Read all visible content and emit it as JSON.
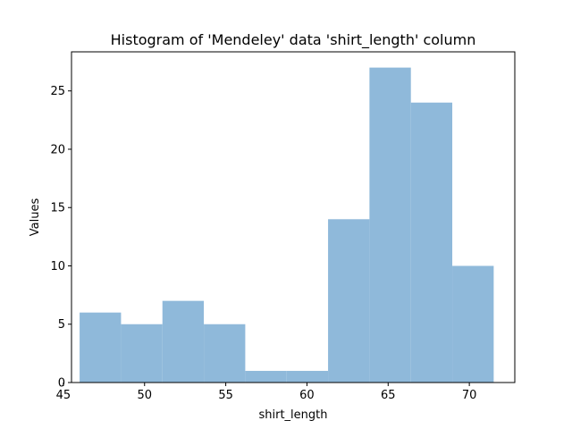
{
  "chart_data": {
    "type": "bar",
    "title": "Histogram of 'Mendeley' data 'shirt_length' column",
    "xlabel": "shirt_length",
    "ylabel": "Values",
    "xlim": [
      45.5,
      72.8
    ],
    "ylim": [
      0,
      28.35
    ],
    "xticks": [
      45,
      50,
      55,
      60,
      65,
      70
    ],
    "yticks": [
      0,
      5,
      10,
      15,
      20,
      25
    ],
    "bins": [
      {
        "x0": 46.0,
        "x1": 48.55,
        "value": 6
      },
      {
        "x0": 48.55,
        "x1": 51.1,
        "value": 5
      },
      {
        "x0": 51.1,
        "x1": 53.65,
        "value": 7
      },
      {
        "x0": 53.65,
        "x1": 56.2,
        "value": 5
      },
      {
        "x0": 56.2,
        "x1": 58.75,
        "value": 1
      },
      {
        "x0": 58.75,
        "x1": 61.3,
        "value": 1
      },
      {
        "x0": 61.3,
        "x1": 63.85,
        "value": 14
      },
      {
        "x0": 63.85,
        "x1": 66.4,
        "value": 27
      },
      {
        "x0": 66.4,
        "x1": 68.95,
        "value": 24
      },
      {
        "x0": 68.95,
        "x1": 71.5,
        "value": 10
      }
    ],
    "bar_color": "#8fb9da",
    "grid": false,
    "legend": "none"
  }
}
